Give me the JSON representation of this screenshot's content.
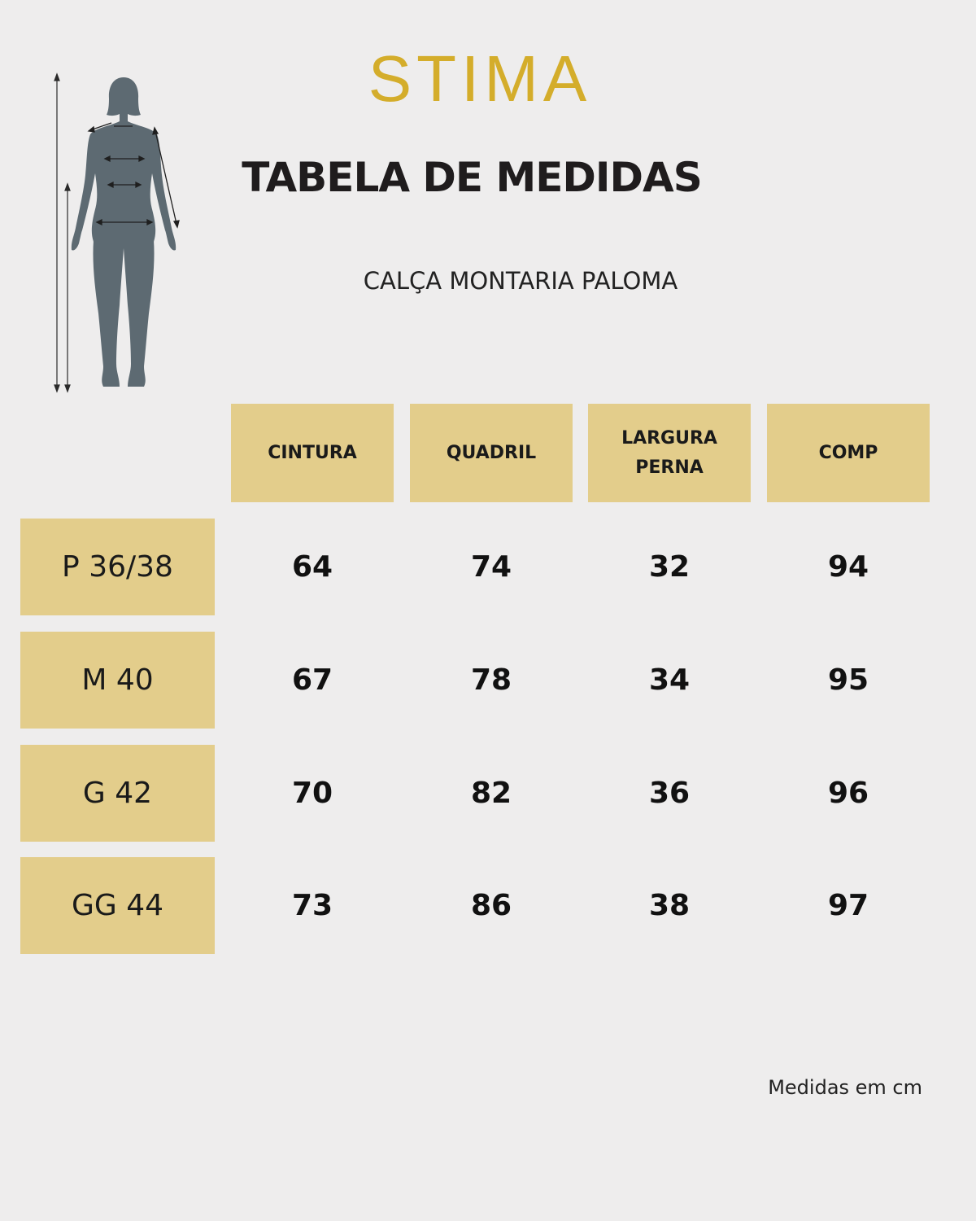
{
  "brand": {
    "logo_text": "STIMA",
    "color": "#d4ad2b"
  },
  "title": "TABELA DE MEDIDAS",
  "subtitle": "CALÇA MONTARIA PALOMA",
  "figure": {
    "icon": "body-measurement-icon",
    "color": "#5d6a72"
  },
  "table": {
    "columns": [
      "CINTURA",
      "QUADRIL",
      "LARGURA\nPERNA",
      "COMP"
    ],
    "rows": [
      {
        "size": "P 36/38",
        "values": [
          "64",
          "74",
          "32",
          "94"
        ]
      },
      {
        "size": "M 40",
        "values": [
          "67",
          "78",
          "34",
          "95"
        ]
      },
      {
        "size": "G 42",
        "values": [
          "70",
          "82",
          "36",
          "96"
        ]
      },
      {
        "size": "GG 44",
        "values": [
          "73",
          "86",
          "38",
          "97"
        ]
      }
    ],
    "header_color": "#e3cd8b"
  },
  "footnote": "Medidas em cm"
}
